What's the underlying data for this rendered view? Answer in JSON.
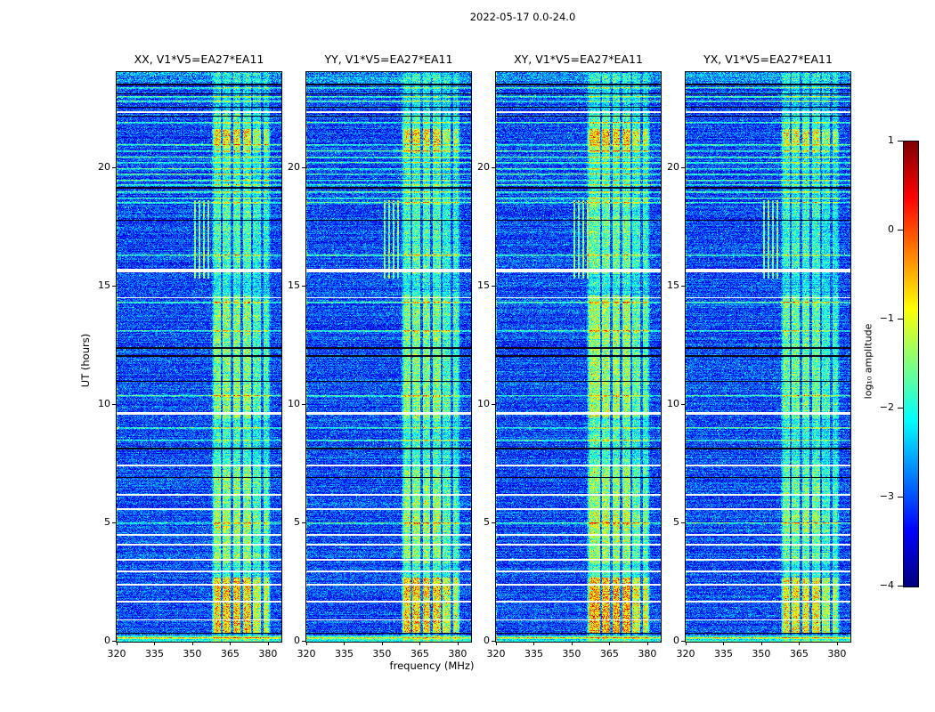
{
  "chart_data": {
    "type": "heatmap",
    "title": "2022-05-17 0.0-24.0",
    "xlabel": "frequency (MHz)",
    "ylabel": "UT (hours)",
    "panels": [
      {
        "title": "XX, V1*V5=EA27*EA11"
      },
      {
        "title": "YY, V1*V5=EA27*EA11"
      },
      {
        "title": "XY, V1*V5=EA27*EA11"
      },
      {
        "title": "YX, V1*V5=EA27*EA11"
      }
    ],
    "x_range_mhz": [
      320,
      385
    ],
    "x_ticks": [
      320,
      335,
      350,
      365,
      380
    ],
    "y_range_hours": [
      0,
      24
    ],
    "y_ticks": [
      0,
      5,
      10,
      15,
      20
    ],
    "colorbar": {
      "label": "log₁₀ amplitude",
      "range": [
        -4,
        1
      ],
      "ticks": [
        1,
        0,
        -1,
        -2,
        -3,
        -4
      ],
      "colormap": "jet"
    },
    "features": {
      "noise_floor_log10_range": [
        -3.55,
        -2.5
      ],
      "rfi_band_mhz": [
        357.5,
        381
      ],
      "band_gaps_mhz": [
        361.5,
        365.5,
        369.5,
        373.5,
        377.5
      ],
      "band_time_profile": [
        [
          0,
          0.35,
          0.5
        ],
        [
          0.35,
          2.7,
          2.3
        ],
        [
          2.7,
          3.3,
          1.1
        ],
        [
          3.3,
          4.6,
          1.5
        ],
        [
          4.6,
          5.4,
          1.7
        ],
        [
          5.4,
          7.4,
          1.5
        ],
        [
          7.4,
          9.4,
          1.1
        ],
        [
          9.4,
          10.1,
          1.6
        ],
        [
          10.1,
          14.6,
          1.5
        ],
        [
          14.6,
          15.5,
          0.9
        ],
        [
          15.5,
          18.6,
          1.25
        ],
        [
          18.6,
          20.6,
          1.0
        ],
        [
          20.6,
          21.0,
          1.6
        ],
        [
          21.0,
          21.6,
          2.2
        ],
        [
          21.6,
          22.4,
          1.2
        ],
        [
          22.4,
          24,
          0.7
        ]
      ],
      "flagged_white_rows_ut": [
        [
          22.35,
          2
        ],
        [
          15.7,
          4
        ],
        [
          14.5,
          1
        ],
        [
          9.65,
          3
        ],
        [
          7.45,
          2
        ],
        [
          6.2,
          2
        ],
        [
          5.6,
          2
        ],
        [
          4.5,
          2
        ],
        [
          4.1,
          2
        ],
        [
          3.45,
          2
        ],
        [
          2.95,
          2
        ],
        [
          2.4,
          2
        ],
        [
          1.7,
          2
        ],
        [
          0.9,
          1
        ]
      ],
      "flagged_black_rows_ut": [
        [
          23.5,
          2
        ],
        [
          23.1,
          1
        ],
        [
          22.55,
          1
        ],
        [
          22.15,
          1
        ],
        [
          19.15,
          2
        ],
        [
          17.75,
          1
        ],
        [
          12.4,
          2
        ],
        [
          12.05,
          2
        ],
        [
          10.95,
          1
        ],
        [
          8.15,
          2
        ],
        [
          6.9,
          1
        ],
        [
          0.35,
          1
        ]
      ],
      "bright_rows_ut": [
        23.35,
        23.0,
        22.8,
        21.9,
        20.95,
        20.7,
        20.45,
        20.2,
        19.95,
        19.7,
        19.45,
        19.25,
        18.95,
        18.7,
        18.5,
        16.3,
        14.3,
        13.1,
        10.35,
        9.0,
        8.5,
        5.0,
        0.15
      ],
      "narrow_vlines_mhz": [
        350.8,
        352.6,
        354.4,
        356.2
      ],
      "narrow_vlines_ut_range": [
        15.3,
        18.6
      ],
      "panel_band_scale": [
        1.0,
        1.0,
        1.08,
        0.9
      ],
      "panel_band_start_mhz": [
        357.5,
        357.5,
        355.8,
        357.5
      ]
    }
  }
}
